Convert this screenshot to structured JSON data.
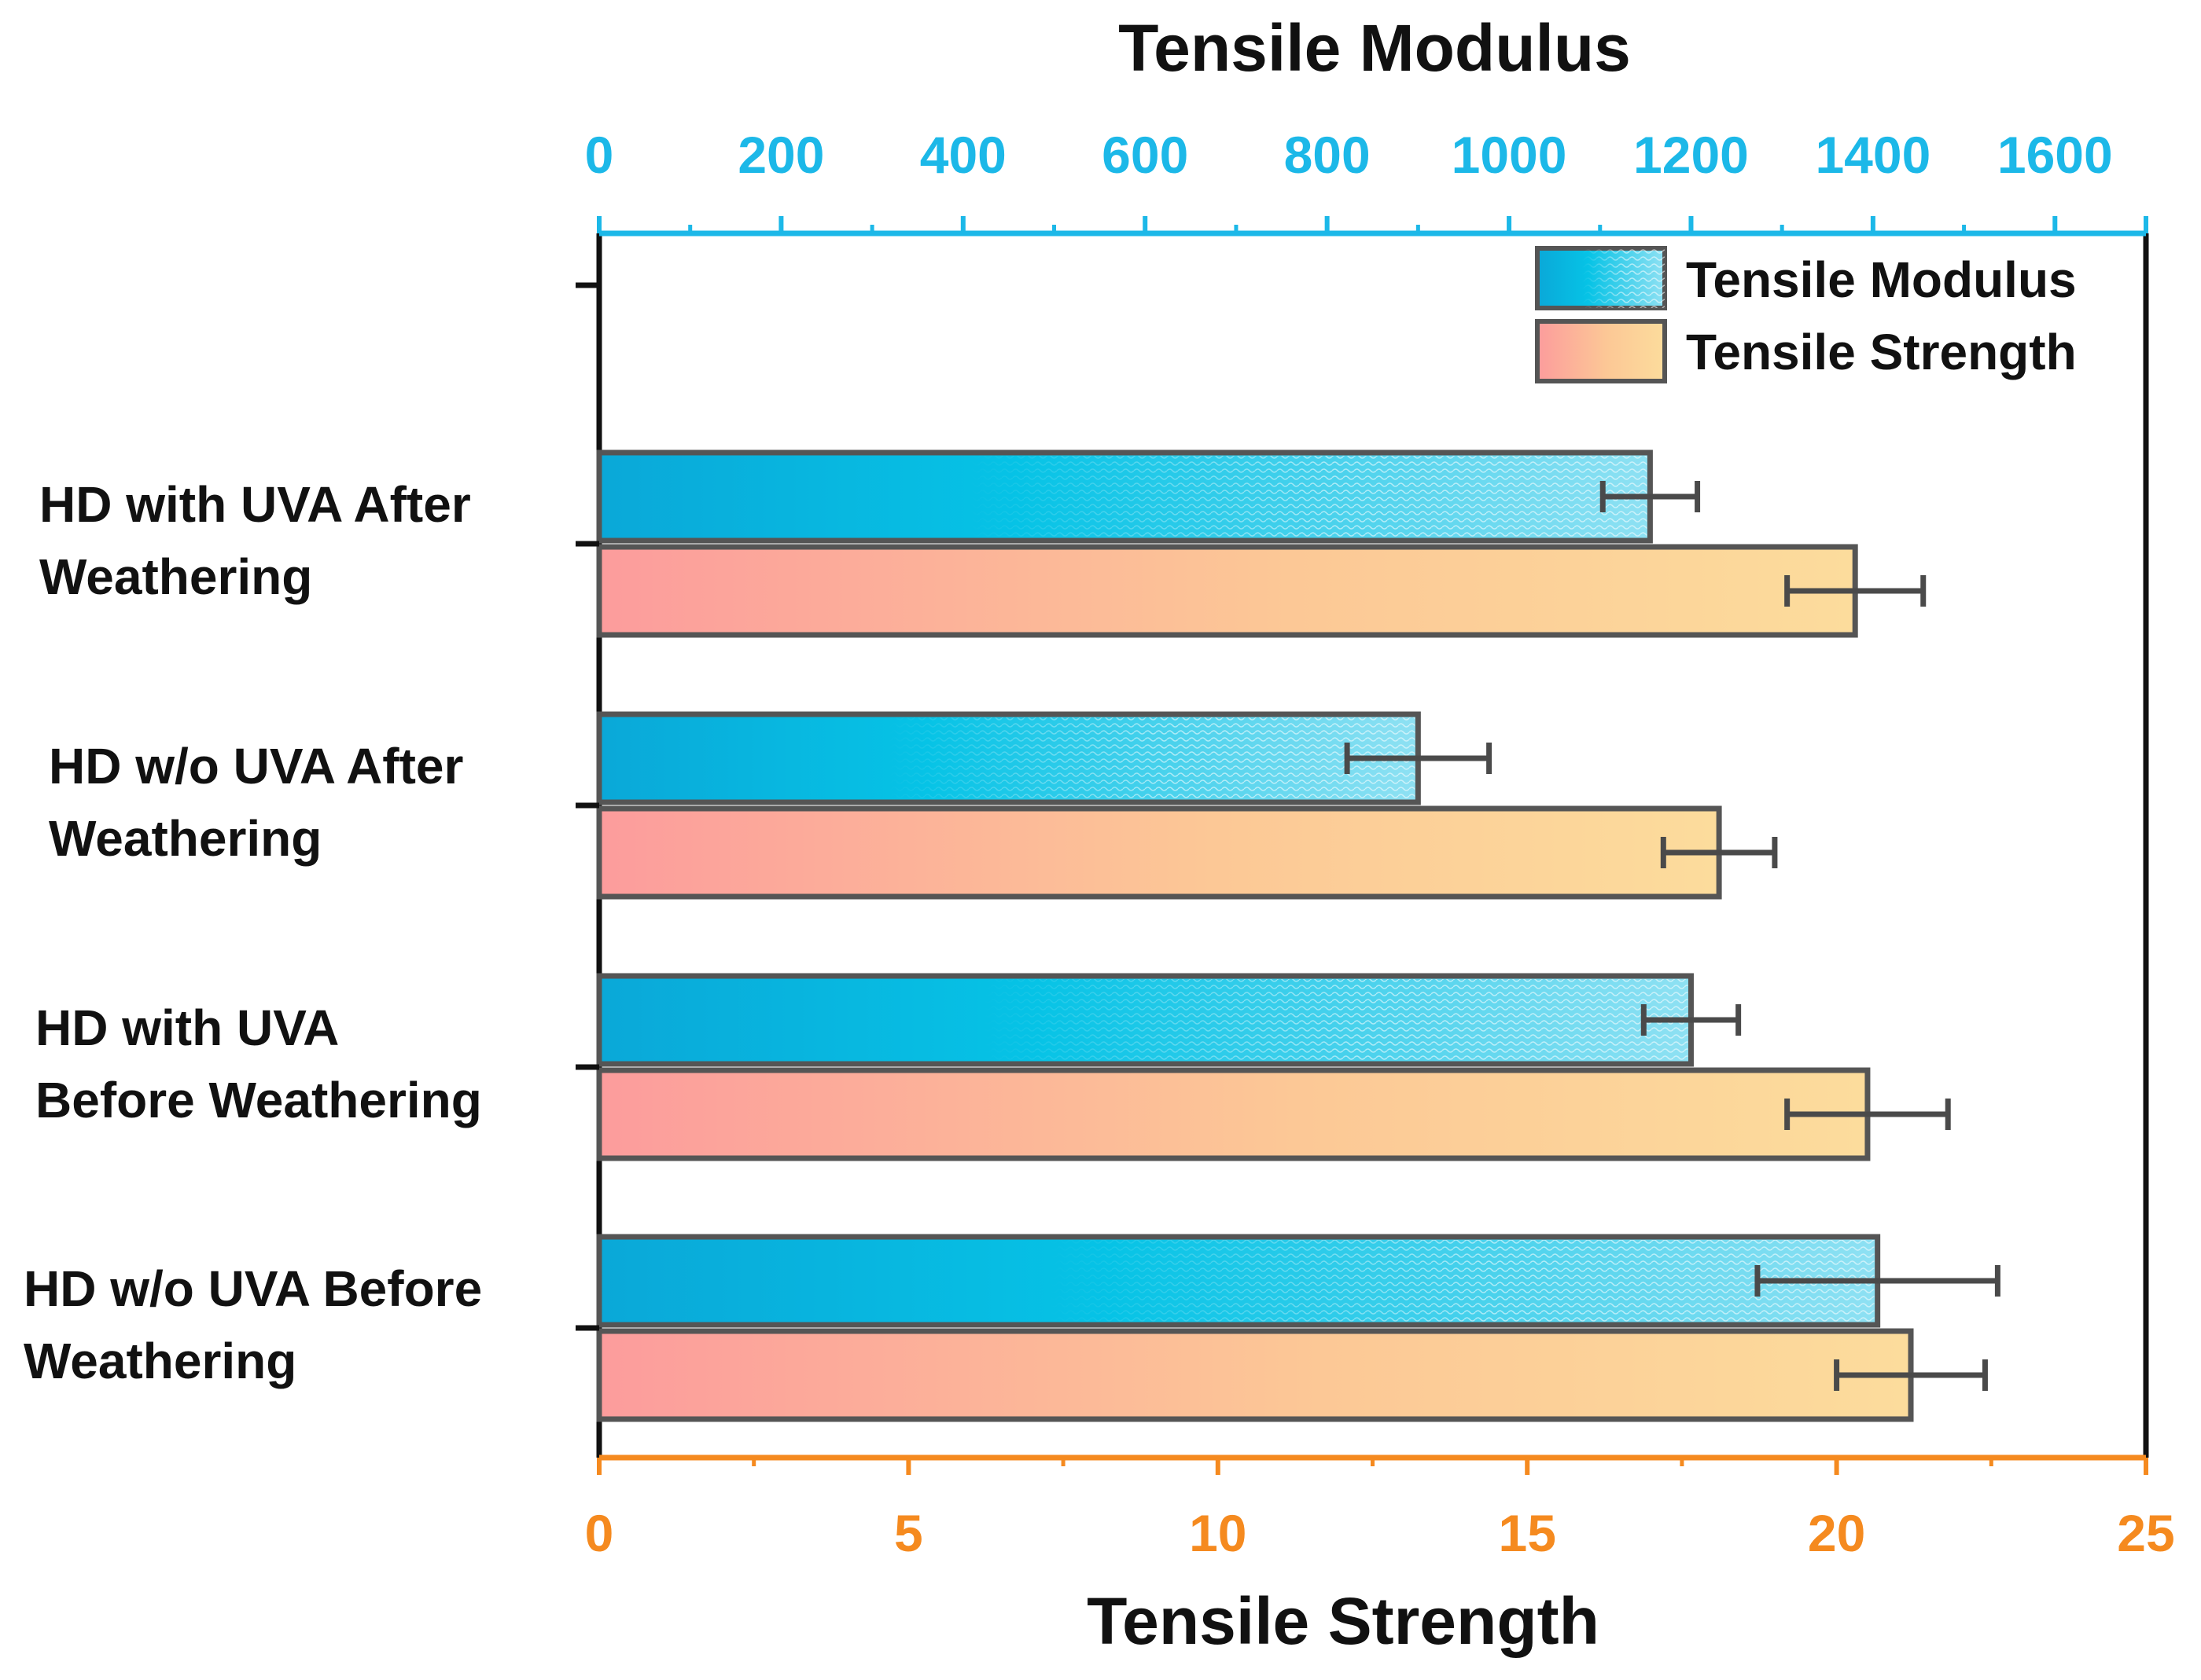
{
  "chart_data": {
    "type": "bar",
    "orientation": "horizontal",
    "top_axis": {
      "title": "Tensile Modulus",
      "range": [
        0,
        1700
      ],
      "ticks": [
        "0",
        "200",
        "400",
        "600",
        "800",
        "1000",
        "1200",
        "1400",
        "1600"
      ],
      "tick_values": [
        0,
        200,
        400,
        600,
        800,
        1000,
        1200,
        1400,
        1600
      ],
      "color": "#1cb8e8"
    },
    "bottom_axis": {
      "title": "Tensile Strength",
      "range": [
        0,
        25
      ],
      "ticks": [
        "0",
        "5",
        "10",
        "15",
        "20",
        "25"
      ],
      "tick_values": [
        0,
        5,
        10,
        15,
        20,
        25
      ],
      "color": "#f58a1f"
    },
    "categories": [
      "HD with UVA After Weathering",
      "HD w/o UVA After Weathering",
      "HD with UVA Before Weathering",
      "HD w/o UVA Before Weathering"
    ],
    "category_lines": [
      [
        "HD with UVA After",
        "Weathering"
      ],
      [
        "HD w/o UVA After",
        "Weathering"
      ],
      [
        "HD with UVA",
        "Before Weathering"
      ],
      [
        "HD w/o UVA Before",
        "Weathering"
      ]
    ],
    "series": [
      {
        "name": "Tensile Modulus",
        "axis": "top",
        "values": [
          1155,
          900,
          1200,
          1405
        ],
        "errors": [
          52,
          78,
          52,
          132
        ],
        "gradient": [
          "#0aa8d8",
          "#06c3e6",
          "#8fe1f3"
        ]
      },
      {
        "name": "Tensile Strength",
        "axis": "bottom",
        "values": [
          20.3,
          18.1,
          20.5,
          21.2
        ],
        "errors": [
          1.1,
          0.9,
          1.3,
          1.2
        ],
        "gradient": [
          "#fc9c9c",
          "#fcc896",
          "#fcdc9c"
        ]
      }
    ],
    "legend": {
      "position": "top-right",
      "entries": [
        "Tensile Modulus",
        "Tensile Strength"
      ]
    },
    "grid": false
  }
}
